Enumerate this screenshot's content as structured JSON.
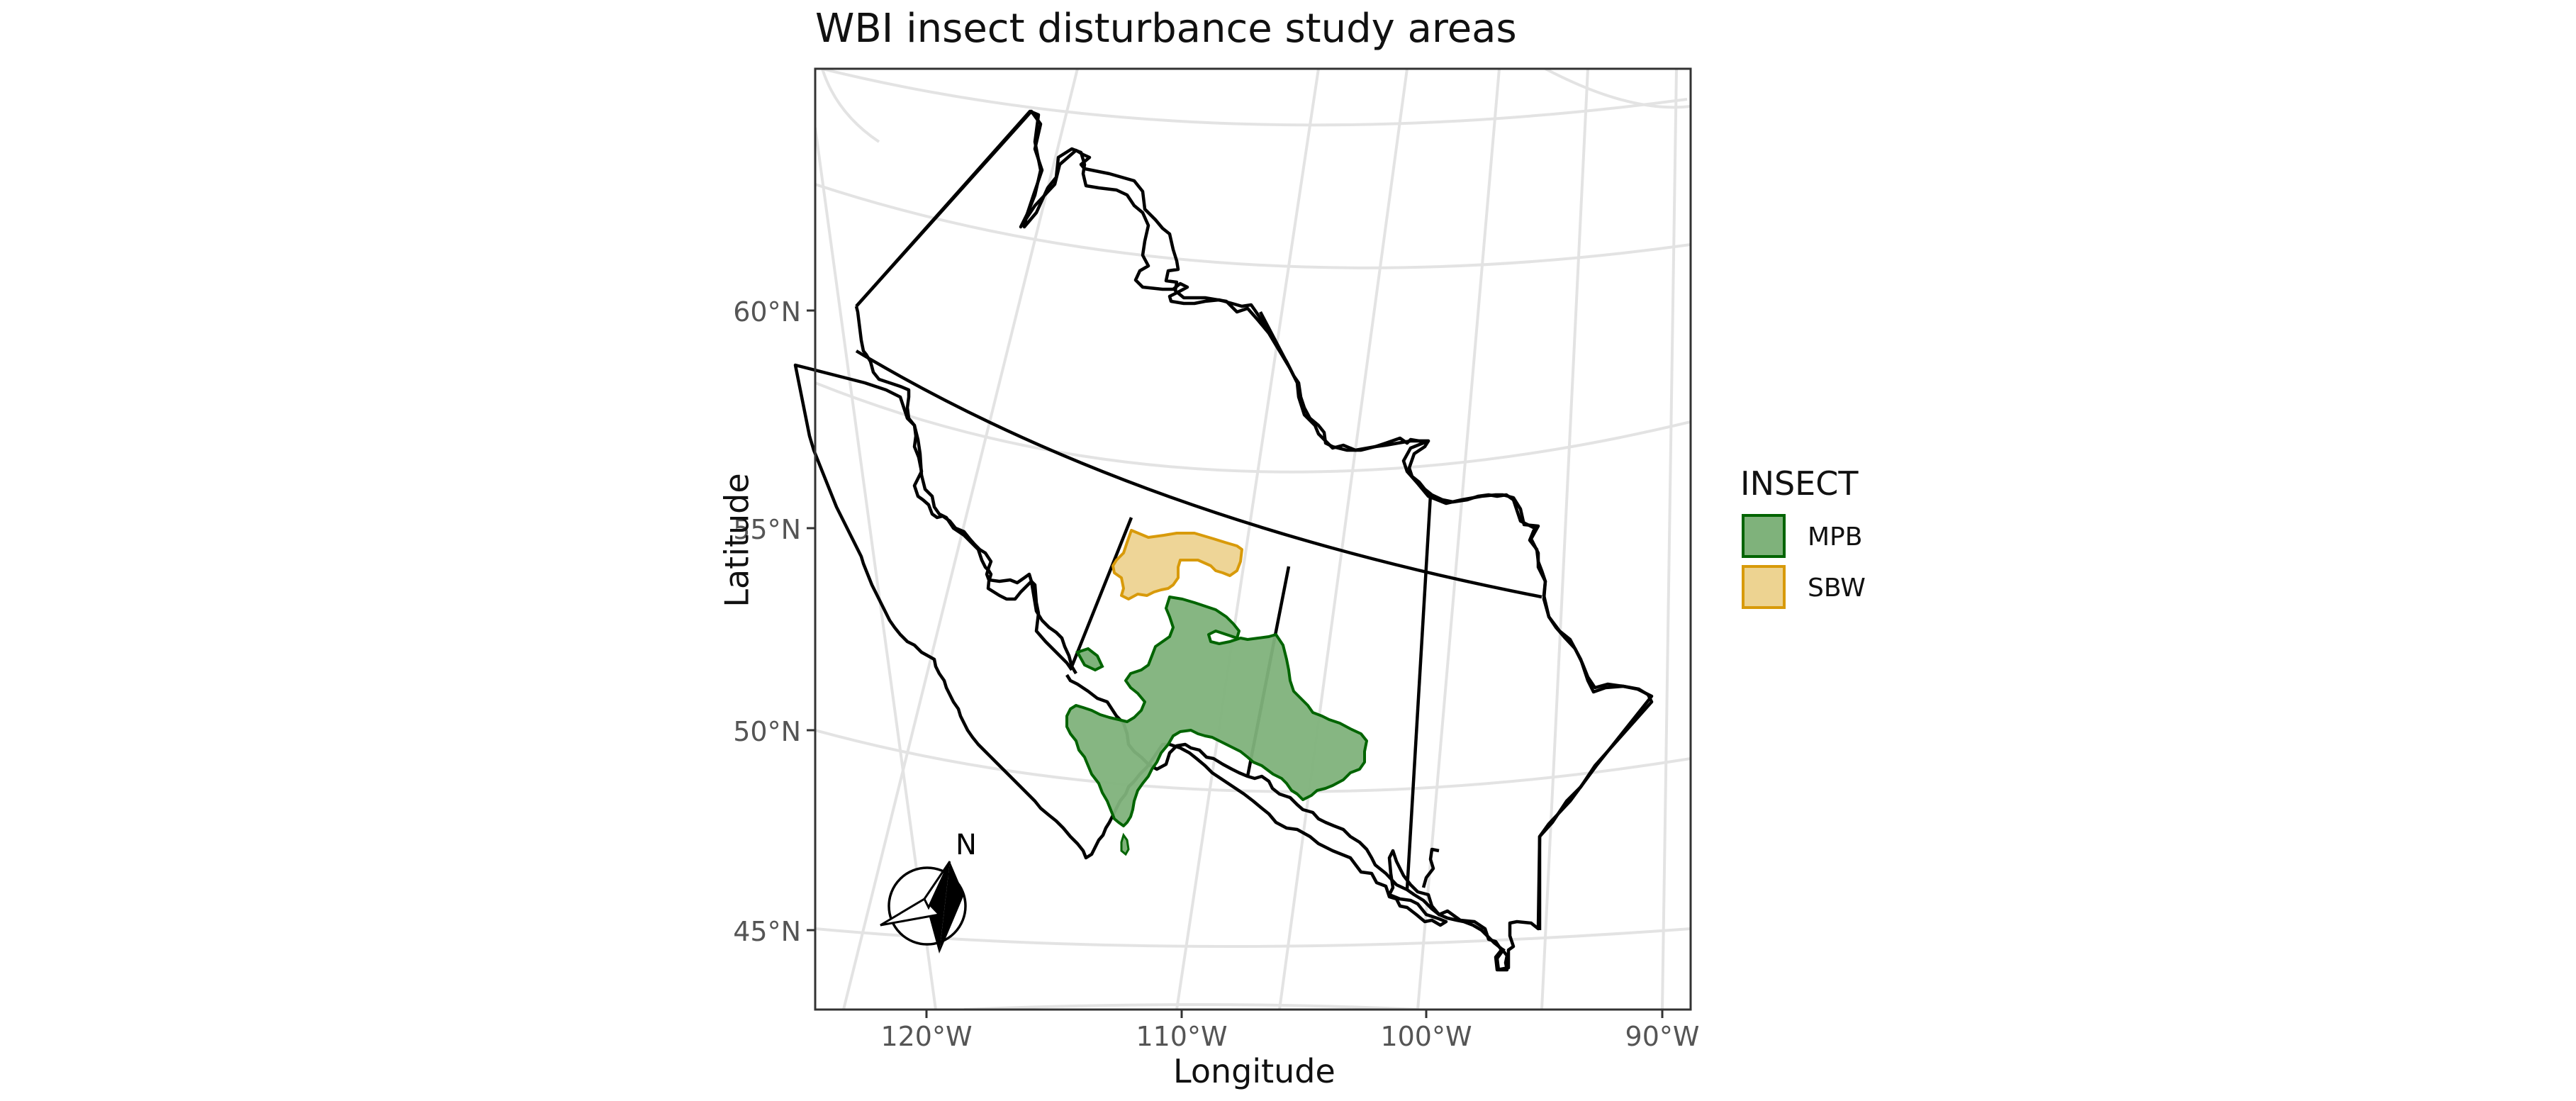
{
  "title": "WBI insect disturbance study areas",
  "axes": {
    "xlabel": "Longitude",
    "ylabel": "Latitude",
    "x_ticks": [
      "120°W",
      "110°W",
      "100°W",
      "90°W"
    ],
    "y_ticks": [
      "60°N",
      "55°N",
      "50°N",
      "45°N"
    ]
  },
  "legend": {
    "title": "INSECT",
    "items": [
      {
        "label": "MPB",
        "fill": "#7fb27b",
        "stroke": "#006400"
      },
      {
        "label": "SBW",
        "fill": "#edd391",
        "stroke": "#d89a0a"
      }
    ]
  },
  "north_arrow": {
    "label": "N"
  },
  "colors": {
    "panel_border": "#333333",
    "graticule": "#e3e3e3",
    "boundary": "#000000"
  }
}
